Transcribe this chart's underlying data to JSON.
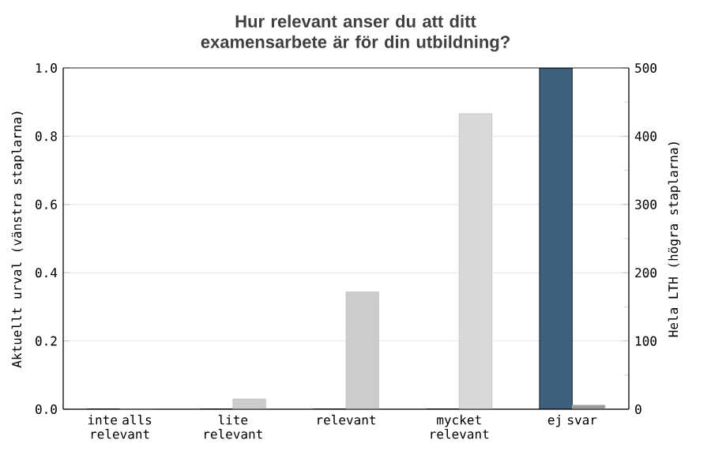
{
  "chart_data": {
    "type": "bar",
    "title": "Hur relevant anser du att ditt examensarbete är för din utbildning?",
    "categories": [
      "inte alls relevant",
      "lite relevant",
      "relevant",
      "mycket relevant",
      "ej svar"
    ],
    "ylabel": "Aktuellt urval (vänstra staplarna)",
    "y2label": "Hela LTH (högra staplarna)",
    "series": [
      {
        "values": [
          0,
          0,
          0,
          0,
          1.0
        ],
        "color": "#3f607d"
      },
      {
        "values": [
          0,
          15,
          172,
          433,
          6
        ],
        "colors": [
          "#cccccc",
          "#cccccc",
          "#cccccc",
          "#d9d9d9",
          "#999999"
        ],
        "axis": "y2"
      }
    ],
    "ylim": [
      0,
      1.0
    ],
    "yticks": [
      {
        "value": 0,
        "label": "0.0"
      },
      {
        "value": 0.2,
        "label": "0.2"
      },
      {
        "value": 0.4,
        "label": "0.4"
      },
      {
        "value": 0.6,
        "label": "0.6"
      },
      {
        "value": 0.8,
        "label": "0.8"
      },
      {
        "value": 1.0,
        "label": "1.0"
      }
    ],
    "y2lim": [
      0,
      500
    ],
    "y2ticks": [
      0,
      100,
      200,
      300,
      400,
      500
    ],
    "grid": "y"
  }
}
